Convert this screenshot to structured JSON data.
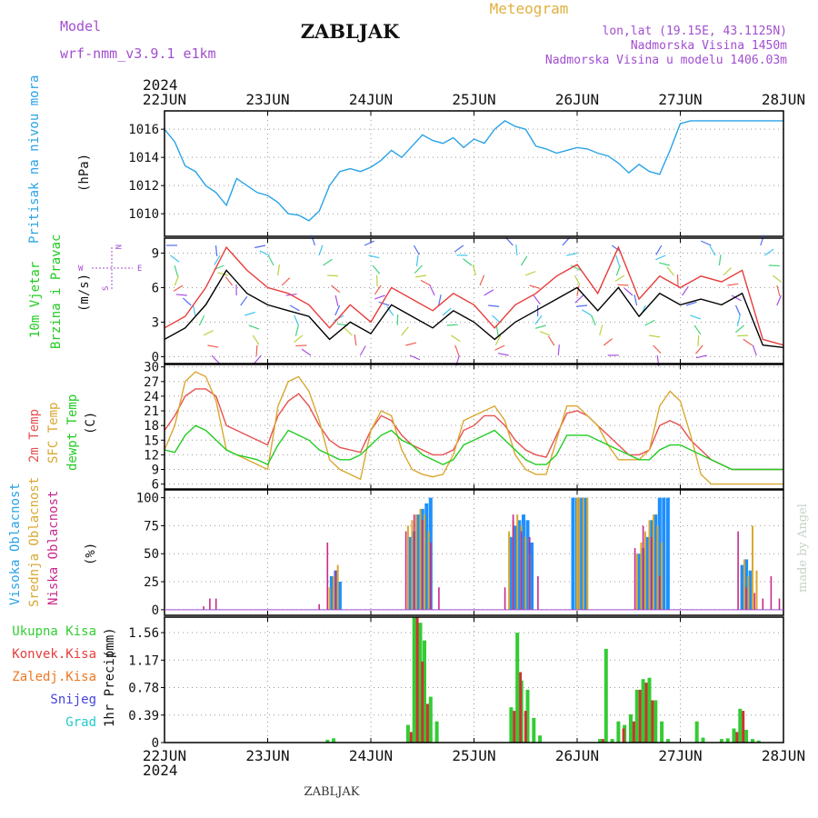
{
  "header": {
    "model_label": "Model",
    "model_name": "wrf-nmm_v3.9.1  e1km",
    "station": "ZABLJAK",
    "product": "Meteogram",
    "coords": "lon,lat (19.15E, 43.1125N)",
    "altitude": "Nadmorska Visina 1450m",
    "model_altitude": "Nadmorska Visina u modelu 1406.03m",
    "credit": "made by Angel",
    "footer_station": "ZABLJAK"
  },
  "time_axis": {
    "year": "2024",
    "labels": [
      "22JUN",
      "23JUN",
      "24JUN",
      "25JUN",
      "26JUN",
      "27JUN",
      "28JUN"
    ]
  },
  "colors": {
    "pressure": "#29a3e6",
    "wind_speed": "#000000",
    "wind_gust": "#e83c3c",
    "temp2m": "#e85050",
    "sfc_temp": "#d9a832",
    "dewpoint": "#22cc22",
    "cloud_high": "#1e90ff",
    "cloud_mid": "#d9a832",
    "cloud_low": "#c82a8c",
    "precip_total": "#33cc33",
    "precip_conv": "#cc3333",
    "precip_frozen": "#ee7722",
    "snow": "#4444dd",
    "hail": "#22cccc",
    "title_purple": "#a24ed0",
    "title_orange": "#e0b040"
  },
  "chart_data": [
    {
      "type": "line",
      "id": "pressure",
      "ylabel": "Pritisak na nivou mora",
      "unit": "(hPa)",
      "ylim": [
        1008.4,
        1017.3
      ],
      "yticks": [
        1010,
        1012,
        1014,
        1016
      ],
      "grid": true,
      "series": [
        {
          "x": [
            0,
            0.1,
            0.2,
            0.3,
            0.4,
            0.5,
            0.6,
            0.7,
            0.8,
            0.9,
            1.0,
            1.1,
            1.2,
            1.3,
            1.4,
            1.5,
            1.6,
            1.7,
            1.8,
            1.9,
            2.0,
            2.1,
            2.2,
            2.3,
            2.4,
            2.5,
            2.6,
            2.7,
            2.8,
            2.9,
            3.0,
            3.1,
            3.2,
            3.3,
            3.4,
            3.5,
            3.6,
            3.7,
            3.8,
            3.9,
            4.0,
            4.1,
            4.2,
            4.3,
            4.4,
            4.5,
            4.6,
            4.7,
            4.8,
            4.9,
            5.0,
            5.1,
            5.2,
            5.3,
            5.4,
            5.5,
            5.6,
            5.7,
            5.8,
            5.9,
            6.0
          ],
          "values": [
            1016.0,
            1015.1,
            1013.4,
            1013.0,
            1012.0,
            1011.5,
            1010.6,
            1012.5,
            1012.0,
            1011.5,
            1011.3,
            1010.8,
            1010.0,
            1009.9,
            1009.5,
            1010.2,
            1012.0,
            1013.0,
            1013.2,
            1013.0,
            1013.3,
            1013.8,
            1014.5,
            1014.0,
            1014.8,
            1015.6,
            1015.2,
            1015.0,
            1015.4,
            1014.7,
            1015.3,
            1015.0,
            1016.0,
            1016.6,
            1016.2,
            1016.0,
            1014.8,
            1014.6,
            1014.3,
            1014.5,
            1014.7,
            1014.6,
            1014.3,
            1014.1,
            1013.6,
            1012.9,
            1013.5,
            1013.0,
            1012.8,
            1014.5,
            1016.4,
            1016.6,
            1016.6,
            1016.6,
            1016.6,
            1016.6,
            1016.6,
            1016.6,
            1016.6,
            1016.6,
            1016.6
          ]
        }
      ]
    },
    {
      "type": "line",
      "id": "wind",
      "ylabel": "10m Vjetar",
      "ylabel2": "Brzina i Pravac",
      "unit": "(m/s)",
      "direction_legend": [
        "N",
        "W",
        "E",
        "S"
      ],
      "ylim": [
        -0.6,
        10.3
      ],
      "yticks": [
        0,
        3,
        6,
        9
      ],
      "grid": true,
      "series": [
        {
          "name": "speed",
          "x": [
            0,
            0.2,
            0.4,
            0.6,
            0.8,
            1.0,
            1.2,
            1.4,
            1.6,
            1.8,
            2.0,
            2.2,
            2.4,
            2.6,
            2.8,
            3.0,
            3.2,
            3.4,
            3.6,
            3.8,
            4.0,
            4.2,
            4.4,
            4.6,
            4.8,
            5.0,
            5.2,
            5.4,
            5.6,
            5.8,
            6.0
          ],
          "values": [
            1.5,
            2.5,
            4.5,
            7.5,
            5.5,
            4.5,
            4.0,
            3.5,
            1.5,
            3.0,
            2.0,
            4.5,
            3.5,
            2.5,
            4.0,
            3.0,
            1.5,
            3.0,
            4.0,
            5.0,
            6.0,
            4.0,
            6.0,
            3.5,
            5.5,
            4.5,
            5.0,
            4.5,
            5.5,
            1.0,
            0.8
          ]
        },
        {
          "name": "gust",
          "x": [
            0,
            0.2,
            0.4,
            0.6,
            0.8,
            1.0,
            1.2,
            1.4,
            1.6,
            1.8,
            2.0,
            2.2,
            2.4,
            2.6,
            2.8,
            3.0,
            3.2,
            3.4,
            3.6,
            3.8,
            4.0,
            4.2,
            4.4,
            4.6,
            4.8,
            5.0,
            5.2,
            5.4,
            5.6,
            5.8,
            6.0
          ],
          "values": [
            2.5,
            3.5,
            6.0,
            9.5,
            7.5,
            6.0,
            5.5,
            4.5,
            2.5,
            4.5,
            3.0,
            6.0,
            5.0,
            4.0,
            5.5,
            4.5,
            2.5,
            4.5,
            5.5,
            7.0,
            8.0,
            5.5,
            9.5,
            5.0,
            7.0,
            6.0,
            7.0,
            6.5,
            7.5,
            1.5,
            1.0
          ]
        }
      ]
    },
    {
      "type": "line",
      "id": "temperature",
      "ylabel": "2m Temp",
      "ylabel2": "SFC Temp",
      "ylabel3": "dewpt Temp",
      "unit": "(C)",
      "ylim": [
        5,
        30.5
      ],
      "yticks": [
        6,
        9,
        12,
        15,
        18,
        21,
        24,
        27,
        30
      ],
      "grid": true,
      "series": [
        {
          "name": "2m Temp",
          "x": [
            0,
            0.1,
            0.2,
            0.3,
            0.4,
            0.5,
            0.6,
            0.7,
            0.8,
            0.9,
            1.0,
            1.1,
            1.2,
            1.3,
            1.4,
            1.5,
            1.6,
            1.7,
            1.8,
            1.9,
            2.0,
            2.1,
            2.2,
            2.3,
            2.4,
            2.5,
            2.6,
            2.7,
            2.8,
            2.9,
            3.0,
            3.1,
            3.2,
            3.3,
            3.4,
            3.5,
            3.6,
            3.7,
            3.8,
            3.9,
            4.0,
            4.1,
            4.2,
            4.3,
            4.4,
            4.5,
            4.6,
            4.7,
            4.8,
            4.9,
            5.0,
            5.1,
            5.2,
            5.3,
            5.4,
            5.5,
            5.6,
            5.7,
            5.8,
            5.9,
            6.0
          ],
          "values": [
            17,
            20,
            24,
            25.5,
            25.5,
            24,
            18,
            17,
            16,
            15,
            14,
            20,
            23,
            24.5,
            22,
            18,
            15,
            13.5,
            13,
            12.5,
            17,
            20,
            19,
            16,
            14,
            13,
            12,
            12,
            13,
            17,
            18,
            20,
            20,
            18,
            15,
            13,
            12,
            11.5,
            16,
            20.5,
            21,
            20,
            18,
            16,
            14,
            12,
            12,
            13,
            18,
            19,
            18,
            15,
            13,
            11,
            10,
            9,
            9,
            9,
            9,
            9,
            9
          ]
        },
        {
          "name": "SFC Temp",
          "x": [
            0,
            0.1,
            0.2,
            0.3,
            0.4,
            0.5,
            0.6,
            0.7,
            0.8,
            0.9,
            1.0,
            1.1,
            1.2,
            1.3,
            1.4,
            1.5,
            1.6,
            1.7,
            1.8,
            1.9,
            2.0,
            2.1,
            2.2,
            2.3,
            2.4,
            2.5,
            2.6,
            2.7,
            2.8,
            2.9,
            3.0,
            3.1,
            3.2,
            3.3,
            3.4,
            3.5,
            3.6,
            3.7,
            3.8,
            3.9,
            4.0,
            4.1,
            4.2,
            4.3,
            4.4,
            4.5,
            4.6,
            4.7,
            4.8,
            4.9,
            5.0,
            5.1,
            5.2,
            5.3,
            5.4,
            5.5,
            5.6,
            5.7,
            5.8,
            5.9,
            6.0
          ],
          "values": [
            13,
            18,
            27,
            29,
            28,
            23,
            13,
            12,
            11,
            10,
            9,
            22,
            27,
            28,
            25,
            19,
            11,
            9,
            8,
            7,
            17,
            21,
            20,
            13,
            9,
            8,
            7.5,
            8,
            12,
            19,
            20,
            21,
            22,
            19,
            12,
            9,
            8,
            8,
            15,
            22,
            22,
            20,
            18,
            14,
            11,
            11,
            11,
            13,
            22,
            25,
            23,
            16,
            8,
            6,
            6,
            6,
            6,
            6,
            6,
            6,
            6
          ]
        },
        {
          "name": "dewpt Temp",
          "x": [
            0,
            0.1,
            0.2,
            0.3,
            0.4,
            0.5,
            0.6,
            0.7,
            0.8,
            0.9,
            1.0,
            1.1,
            1.2,
            1.3,
            1.4,
            1.5,
            1.6,
            1.7,
            1.8,
            1.9,
            2.0,
            2.1,
            2.2,
            2.3,
            2.4,
            2.5,
            2.6,
            2.7,
            2.8,
            2.9,
            3.0,
            3.1,
            3.2,
            3.3,
            3.4,
            3.5,
            3.6,
            3.7,
            3.8,
            3.9,
            4.0,
            4.1,
            4.2,
            4.3,
            4.4,
            4.5,
            4.6,
            4.7,
            4.8,
            4.9,
            5.0,
            5.1,
            5.2,
            5.3,
            5.4,
            5.5,
            5.6,
            5.7,
            5.8,
            5.9,
            6.0
          ],
          "values": [
            13,
            12.5,
            16,
            18,
            17,
            15,
            13,
            12,
            11.5,
            11,
            10,
            14,
            17,
            16,
            15,
            13,
            12,
            11,
            11,
            12,
            14,
            16,
            17,
            15,
            14,
            12,
            11,
            10,
            11,
            14,
            15,
            16,
            17,
            15,
            13,
            11,
            10,
            10,
            12,
            16,
            16,
            16,
            15,
            14,
            13,
            12,
            11,
            11,
            13,
            14,
            14,
            13,
            12,
            11,
            10,
            9,
            9,
            9,
            9,
            9,
            9
          ]
        }
      ]
    },
    {
      "type": "bar",
      "id": "clouds",
      "ylabel": "Visoka Oblacnost",
      "ylabel2": "Srednja Oblacnost",
      "ylabel3": "Niska Oblacnost",
      "unit": "(%)",
      "ylim": [
        -5,
        107
      ],
      "yticks": [
        0,
        25,
        50,
        75,
        100
      ],
      "grid": true,
      "series": [
        {
          "name": "high",
          "x": [
            1.62,
            1.66,
            1.7,
            2.38,
            2.42,
            2.46,
            2.5,
            2.54,
            2.58,
            3.36,
            3.4,
            3.44,
            3.48,
            3.52,
            3.56,
            3.96,
            4.0,
            4.04,
            4.08,
            4.6,
            4.64,
            4.68,
            4.72,
            4.76,
            4.8,
            4.84,
            4.88,
            5.6,
            5.64,
            5.68
          ],
          "values": [
            30,
            35,
            25,
            65,
            70,
            85,
            90,
            95,
            100,
            65,
            75,
            80,
            85,
            80,
            60,
            100,
            100,
            100,
            100,
            50,
            55,
            65,
            80,
            85,
            100,
            100,
            100,
            40,
            45,
            35
          ]
        },
        {
          "name": "mid",
          "x": [
            1.6,
            1.64,
            1.68,
            2.36,
            2.4,
            2.44,
            2.48,
            2.52,
            2.56,
            3.34,
            3.38,
            3.42,
            3.46,
            3.5,
            3.54,
            4.0,
            4.02,
            4.06,
            4.1,
            4.58,
            4.62,
            4.66,
            4.7,
            4.74,
            4.78,
            4.82,
            5.62,
            5.66,
            5.7,
            5.74
          ],
          "values": [
            20,
            30,
            40,
            75,
            80,
            85,
            90,
            85,
            70,
            70,
            80,
            85,
            75,
            65,
            50,
            100,
            100,
            100,
            100,
            50,
            60,
            70,
            80,
            85,
            75,
            60,
            45,
            30,
            75,
            35
          ]
        },
        {
          "name": "low",
          "x": [
            0.38,
            0.44,
            0.5,
            1.5,
            1.58,
            1.66,
            2.34,
            2.42,
            2.5,
            2.58,
            2.66,
            3.3,
            3.38,
            3.46,
            3.54,
            3.62,
            4.56,
            4.64,
            4.72,
            4.8,
            5.56,
            5.64,
            5.72,
            5.8,
            5.88,
            5.96
          ],
          "values": [
            3,
            10,
            10,
            5,
            60,
            35,
            70,
            85,
            80,
            60,
            20,
            20,
            85,
            70,
            65,
            30,
            55,
            75,
            65,
            30,
            70,
            20,
            15,
            10,
            30,
            10
          ]
        }
      ]
    },
    {
      "type": "bar",
      "id": "precip",
      "ylabel": "1hr Precip",
      "unit": "(mm)",
      "legend": [
        "Ukupna  Kisa",
        "Konvek.Kisa",
        "Zaledj.Kisa",
        "Snijeg",
        "Grad"
      ],
      "ylim": [
        0,
        1.78
      ],
      "yticks": [
        0,
        0.39,
        0.78,
        1.17,
        1.56
      ],
      "grid": true,
      "series": [
        {
          "name": "Ukupna  Kisa",
          "x": [
            1.58,
            1.64,
            2.36,
            2.42,
            2.48,
            2.52,
            2.58,
            2.64,
            3.36,
            3.42,
            3.46,
            3.52,
            3.58,
            3.64,
            4.22,
            4.28,
            4.34,
            4.4,
            4.46,
            4.52,
            4.58,
            4.64,
            4.7,
            4.76,
            4.82,
            4.88,
            5.16,
            5.22,
            5.4,
            5.46,
            5.52,
            5.58,
            5.64,
            5.7,
            5.76
          ],
          "values": [
            0.04,
            0.06,
            0.25,
            1.78,
            1.7,
            1.45,
            0.65,
            0.3,
            0.5,
            1.56,
            0.88,
            0.75,
            0.35,
            0.1,
            0.05,
            1.33,
            0.05,
            0.3,
            0.25,
            0.4,
            0.75,
            0.9,
            0.92,
            0.6,
            0.3,
            0.05,
            0.3,
            0.07,
            0.05,
            0.06,
            0.2,
            0.48,
            0.18,
            0.05,
            0.03
          ]
        },
        {
          "name": "Konvek.Kisa",
          "x": [
            2.39,
            2.45,
            2.5,
            2.55,
            3.39,
            3.45,
            3.5,
            4.25,
            4.45,
            4.55,
            4.61,
            4.67,
            4.73,
            5.55,
            5.61
          ],
          "values": [
            0.15,
            1.78,
            1.15,
            0.55,
            0.45,
            1.0,
            0.45,
            0.05,
            0.2,
            0.3,
            0.75,
            0.85,
            0.6,
            0.15,
            0.45
          ]
        },
        {
          "name": "Zaledj.Kisa",
          "x": [],
          "values": []
        },
        {
          "name": "Snijeg",
          "x": [],
          "values": []
        },
        {
          "name": "Grad",
          "x": [],
          "values": []
        }
      ]
    }
  ]
}
